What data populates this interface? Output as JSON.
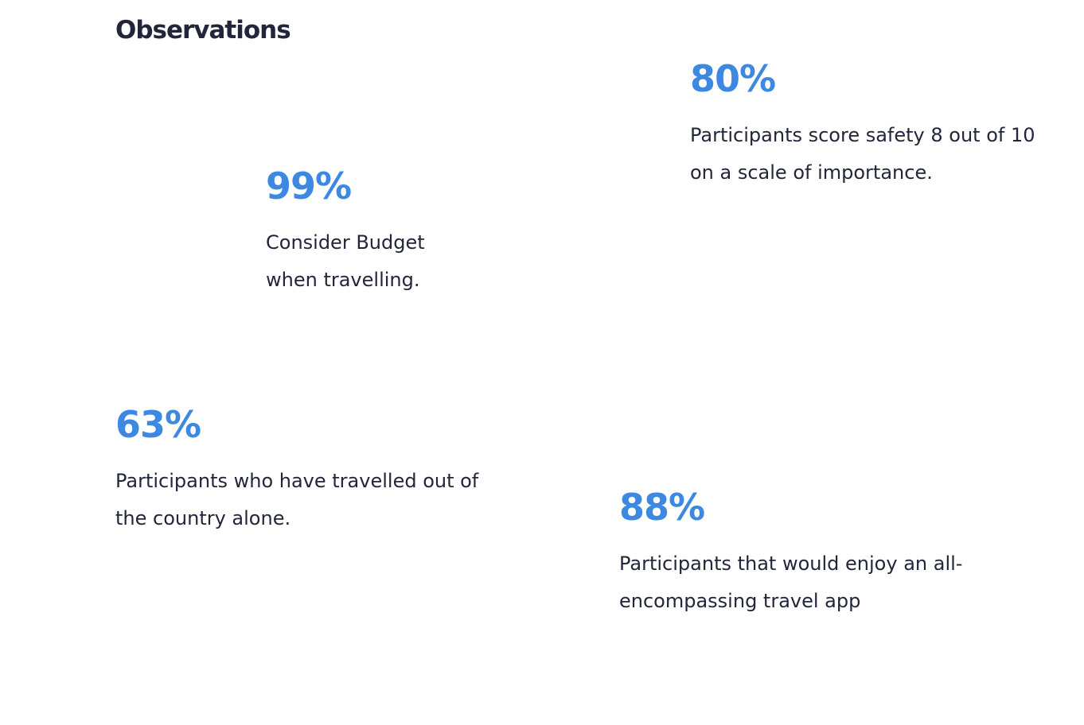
{
  "heading": "Observations",
  "stats": [
    {
      "value": "80%",
      "description": "Participants score safety 8 out of 10 on a scale of importance."
    },
    {
      "value": "99%",
      "description": "Consider Budget when travelling."
    },
    {
      "value": "63%",
      "description": "Participants who have travelled out of the country alone."
    },
    {
      "value": "88%",
      "description": "Participants that would enjoy an all-encompassing travel app"
    }
  ],
  "colors": {
    "accent": "#3d88e0",
    "text": "#22263a",
    "background": "#ffffff"
  }
}
